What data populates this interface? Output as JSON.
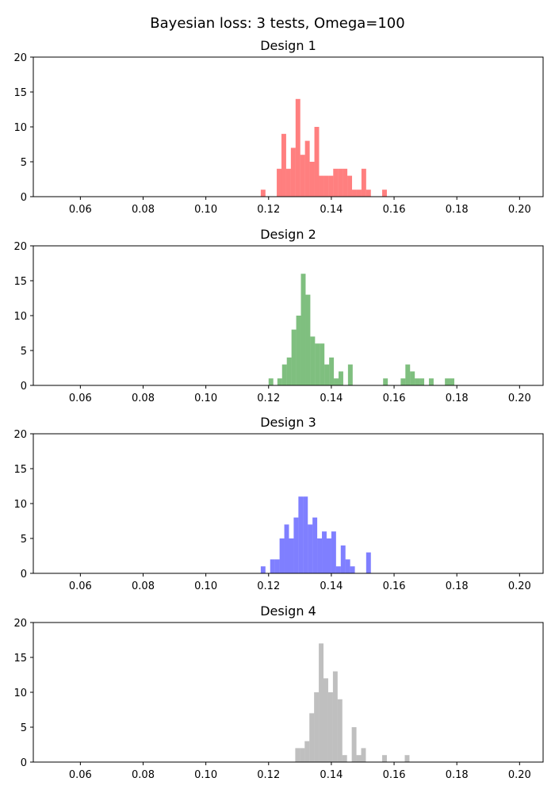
{
  "figure": {
    "title": "Bayesian loss: 3 tests, Omega=100"
  },
  "chart_data": [
    {
      "type": "histogram",
      "title": "Design 1",
      "color": "#ff0000",
      "alpha": 0.5,
      "xlim": [
        0.045,
        0.2075
      ],
      "ylim": [
        0,
        20
      ],
      "xticks": [
        "0.06",
        "0.08",
        "0.10",
        "0.12",
        "0.14",
        "0.16",
        "0.18",
        "0.20"
      ],
      "yticks": [
        "0",
        "5",
        "10",
        "15",
        "20"
      ],
      "bins": [
        {
          "x0": 0.1175,
          "x1": 0.119,
          "count": 1
        },
        {
          "x0": 0.1226,
          "x1": 0.1241,
          "count": 4
        },
        {
          "x0": 0.1241,
          "x1": 0.1256,
          "count": 9
        },
        {
          "x0": 0.1256,
          "x1": 0.1271,
          "count": 4
        },
        {
          "x0": 0.1271,
          "x1": 0.1286,
          "count": 7
        },
        {
          "x0": 0.1286,
          "x1": 0.1301,
          "count": 14
        },
        {
          "x0": 0.1301,
          "x1": 0.1316,
          "count": 6
        },
        {
          "x0": 0.1316,
          "x1": 0.1331,
          "count": 8
        },
        {
          "x0": 0.1331,
          "x1": 0.1346,
          "count": 5
        },
        {
          "x0": 0.1346,
          "x1": 0.1361,
          "count": 10
        },
        {
          "x0": 0.1361,
          "x1": 0.1376,
          "count": 3
        },
        {
          "x0": 0.1376,
          "x1": 0.1391,
          "count": 3
        },
        {
          "x0": 0.1391,
          "x1": 0.1406,
          "count": 3
        },
        {
          "x0": 0.1406,
          "x1": 0.1421,
          "count": 4
        },
        {
          "x0": 0.1421,
          "x1": 0.1436,
          "count": 4
        },
        {
          "x0": 0.1436,
          "x1": 0.1451,
          "count": 4
        },
        {
          "x0": 0.1451,
          "x1": 0.1466,
          "count": 3
        },
        {
          "x0": 0.1466,
          "x1": 0.1481,
          "count": 1
        },
        {
          "x0": 0.1481,
          "x1": 0.1496,
          "count": 1
        },
        {
          "x0": 0.1496,
          "x1": 0.1511,
          "count": 4
        },
        {
          "x0": 0.1511,
          "x1": 0.1526,
          "count": 1
        },
        {
          "x0": 0.1562,
          "x1": 0.1577,
          "count": 1
        }
      ]
    },
    {
      "type": "histogram",
      "title": "Design 2",
      "color": "#008000",
      "alpha": 0.5,
      "xlim": [
        0.045,
        0.2075
      ],
      "ylim": [
        0,
        20
      ],
      "xticks": [
        "0.06",
        "0.08",
        "0.10",
        "0.12",
        "0.14",
        "0.16",
        "0.18",
        "0.20"
      ],
      "yticks": [
        "0",
        "5",
        "10",
        "15",
        "20"
      ],
      "bins": [
        {
          "x0": 0.12,
          "x1": 0.1215,
          "count": 1
        },
        {
          "x0": 0.1228,
          "x1": 0.1243,
          "count": 1
        },
        {
          "x0": 0.1243,
          "x1": 0.1258,
          "count": 3
        },
        {
          "x0": 0.1258,
          "x1": 0.1273,
          "count": 4
        },
        {
          "x0": 0.1273,
          "x1": 0.1288,
          "count": 8
        },
        {
          "x0": 0.1288,
          "x1": 0.1303,
          "count": 10
        },
        {
          "x0": 0.1303,
          "x1": 0.1318,
          "count": 16
        },
        {
          "x0": 0.1318,
          "x1": 0.1333,
          "count": 13
        },
        {
          "x0": 0.1333,
          "x1": 0.1348,
          "count": 7
        },
        {
          "x0": 0.1348,
          "x1": 0.1363,
          "count": 6
        },
        {
          "x0": 0.1363,
          "x1": 0.1378,
          "count": 6
        },
        {
          "x0": 0.1378,
          "x1": 0.1393,
          "count": 3
        },
        {
          "x0": 0.1393,
          "x1": 0.1408,
          "count": 4
        },
        {
          "x0": 0.1408,
          "x1": 0.1423,
          "count": 1
        },
        {
          "x0": 0.1423,
          "x1": 0.1438,
          "count": 2
        },
        {
          "x0": 0.1453,
          "x1": 0.1468,
          "count": 3
        },
        {
          "x0": 0.1565,
          "x1": 0.158,
          "count": 1
        },
        {
          "x0": 0.1621,
          "x1": 0.1636,
          "count": 1
        },
        {
          "x0": 0.1636,
          "x1": 0.1651,
          "count": 3
        },
        {
          "x0": 0.1651,
          "x1": 0.1666,
          "count": 2
        },
        {
          "x0": 0.1666,
          "x1": 0.1681,
          "count": 1
        },
        {
          "x0": 0.1681,
          "x1": 0.1696,
          "count": 1
        },
        {
          "x0": 0.1711,
          "x1": 0.1726,
          "count": 1
        },
        {
          "x0": 0.1762,
          "x1": 0.1777,
          "count": 1
        },
        {
          "x0": 0.1777,
          "x1": 0.1792,
          "count": 1
        }
      ]
    },
    {
      "type": "histogram",
      "title": "Design 3",
      "color": "#0000ff",
      "alpha": 0.5,
      "xlim": [
        0.045,
        0.2075
      ],
      "ylim": [
        0,
        20
      ],
      "xticks": [
        "0.06",
        "0.08",
        "0.10",
        "0.12",
        "0.14",
        "0.16",
        "0.18",
        "0.20"
      ],
      "yticks": [
        "0",
        "5",
        "10",
        "15",
        "20"
      ],
      "bins": [
        {
          "x0": 0.1175,
          "x1": 0.119,
          "count": 1
        },
        {
          "x0": 0.1205,
          "x1": 0.122,
          "count": 2
        },
        {
          "x0": 0.122,
          "x1": 0.1235,
          "count": 2
        },
        {
          "x0": 0.1235,
          "x1": 0.125,
          "count": 5
        },
        {
          "x0": 0.125,
          "x1": 0.1265,
          "count": 7
        },
        {
          "x0": 0.1265,
          "x1": 0.128,
          "count": 5
        },
        {
          "x0": 0.128,
          "x1": 0.1295,
          "count": 8
        },
        {
          "x0": 0.1295,
          "x1": 0.131,
          "count": 11
        },
        {
          "x0": 0.131,
          "x1": 0.1325,
          "count": 11
        },
        {
          "x0": 0.1325,
          "x1": 0.134,
          "count": 7
        },
        {
          "x0": 0.134,
          "x1": 0.1355,
          "count": 8
        },
        {
          "x0": 0.1355,
          "x1": 0.137,
          "count": 5
        },
        {
          "x0": 0.137,
          "x1": 0.1385,
          "count": 6
        },
        {
          "x0": 0.1385,
          "x1": 0.14,
          "count": 5
        },
        {
          "x0": 0.14,
          "x1": 0.1415,
          "count": 6
        },
        {
          "x0": 0.1415,
          "x1": 0.143,
          "count": 1
        },
        {
          "x0": 0.143,
          "x1": 0.1445,
          "count": 4
        },
        {
          "x0": 0.1445,
          "x1": 0.146,
          "count": 2
        },
        {
          "x0": 0.146,
          "x1": 0.1475,
          "count": 1
        },
        {
          "x0": 0.1511,
          "x1": 0.1526,
          "count": 3
        }
      ]
    },
    {
      "type": "histogram",
      "title": "Design 4",
      "color": "#808080",
      "alpha": 0.5,
      "xlim": [
        0.045,
        0.2075
      ],
      "ylim": [
        0,
        20
      ],
      "xticks": [
        "0.06",
        "0.08",
        "0.10",
        "0.12",
        "0.14",
        "0.16",
        "0.18",
        "0.20"
      ],
      "yticks": [
        "0",
        "5",
        "10",
        "15",
        "20"
      ],
      "bins": [
        {
          "x0": 0.1285,
          "x1": 0.13,
          "count": 2
        },
        {
          "x0": 0.13,
          "x1": 0.1315,
          "count": 2
        },
        {
          "x0": 0.1315,
          "x1": 0.133,
          "count": 3
        },
        {
          "x0": 0.133,
          "x1": 0.1345,
          "count": 7
        },
        {
          "x0": 0.1345,
          "x1": 0.136,
          "count": 10
        },
        {
          "x0": 0.136,
          "x1": 0.1375,
          "count": 17
        },
        {
          "x0": 0.1375,
          "x1": 0.139,
          "count": 12
        },
        {
          "x0": 0.139,
          "x1": 0.1405,
          "count": 10
        },
        {
          "x0": 0.1405,
          "x1": 0.142,
          "count": 13
        },
        {
          "x0": 0.142,
          "x1": 0.1435,
          "count": 9
        },
        {
          "x0": 0.1435,
          "x1": 0.145,
          "count": 1
        },
        {
          "x0": 0.1465,
          "x1": 0.148,
          "count": 5
        },
        {
          "x0": 0.148,
          "x1": 0.1495,
          "count": 1
        },
        {
          "x0": 0.1495,
          "x1": 0.151,
          "count": 2
        },
        {
          "x0": 0.1562,
          "x1": 0.1577,
          "count": 1
        },
        {
          "x0": 0.1634,
          "x1": 0.1649,
          "count": 1
        }
      ]
    }
  ]
}
